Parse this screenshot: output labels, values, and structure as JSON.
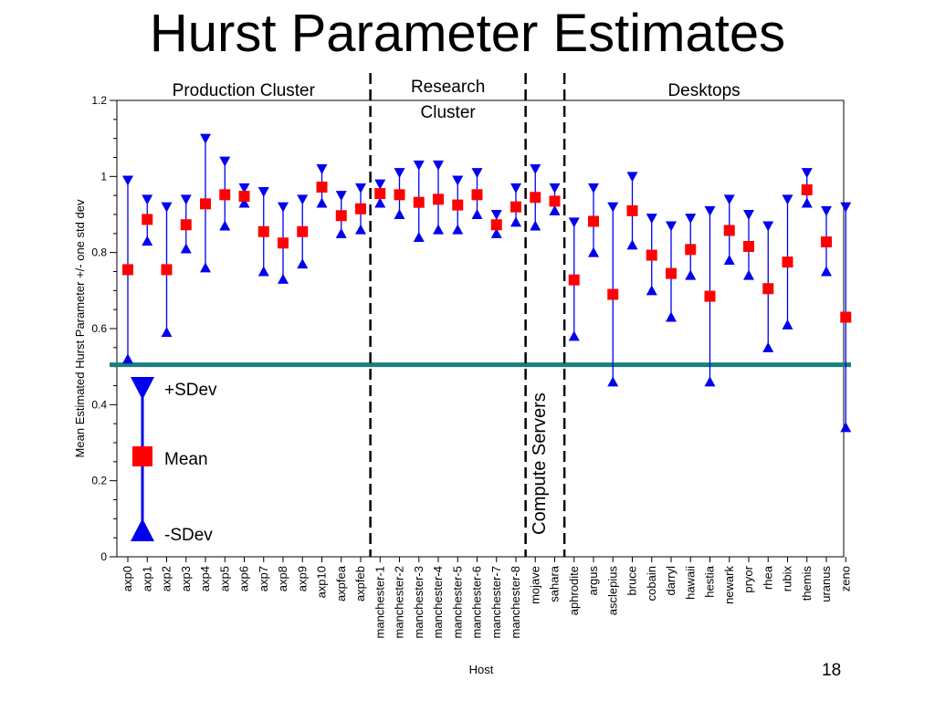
{
  "slide": {
    "title": "Hurst Parameter Estimates",
    "page_number": "18"
  },
  "chart_data": {
    "type": "scatter",
    "title": "Hurst Parameter Estimates",
    "xlabel": "Host",
    "ylabel": "Mean Estimated Hurst Parameter +/- one std dev",
    "ylim": [
      0,
      1.2
    ],
    "yticks": [
      0,
      0.2,
      0.4,
      0.6,
      0.8,
      1,
      1.2
    ],
    "ytick_labels": [
      "0",
      "0.2",
      "0.4",
      "0.6",
      "0.8",
      "1",
      "1.2"
    ],
    "reference_line": 0.505,
    "reference_line_color": "#1a7f7f",
    "mean_color": "#ff0000",
    "sdev_color": "#0000ee",
    "categories": [
      "axp0",
      "axp1",
      "axp2",
      "axp3",
      "axp4",
      "axp5",
      "axp6",
      "axp7",
      "axp8",
      "axp9",
      "axp10",
      "axpfea",
      "axpfeb",
      "manchester-1",
      "manchester-2",
      "manchester-3",
      "manchester-4",
      "manchester-5",
      "manchester-6",
      "manchester-7",
      "manchester-8",
      "mojave",
      "sahara",
      "aphrodite",
      "argus",
      "asclepius",
      "bruce",
      "cobain",
      "darryl",
      "hawaii",
      "hestia",
      "newark",
      "pryor",
      "rhea",
      "rubix",
      "themis",
      "uranus",
      "zeno"
    ],
    "series": [
      {
        "name": "+SDev",
        "values": [
          0.99,
          0.94,
          0.92,
          0.94,
          1.1,
          1.04,
          0.97,
          0.96,
          0.92,
          0.94,
          1.02,
          0.95,
          0.97,
          0.98,
          1.01,
          1.03,
          1.03,
          0.99,
          1.01,
          0.9,
          0.97,
          1.02,
          0.97,
          0.88,
          0.97,
          0.92,
          1.0,
          0.89,
          0.87,
          0.89,
          0.91,
          0.94,
          0.9,
          0.87,
          0.94,
          1.01,
          0.91,
          0.92
        ]
      },
      {
        "name": "Mean",
        "values": [
          0.755,
          0.887,
          0.755,
          0.873,
          0.928,
          0.952,
          0.948,
          0.855,
          0.825,
          0.855,
          0.972,
          0.897,
          0.915,
          0.955,
          0.952,
          0.932,
          0.94,
          0.925,
          0.952,
          0.873,
          0.92,
          0.945,
          0.935,
          0.728,
          0.882,
          0.69,
          0.91,
          0.793,
          0.745,
          0.808,
          0.685,
          0.858,
          0.816,
          0.705,
          0.775,
          0.965,
          0.828,
          0.63
        ]
      },
      {
        "name": "-SDev",
        "values": [
          0.52,
          0.83,
          0.59,
          0.81,
          0.76,
          0.87,
          0.93,
          0.75,
          0.73,
          0.77,
          0.93,
          0.85,
          0.86,
          0.93,
          0.9,
          0.84,
          0.86,
          0.86,
          0.9,
          0.85,
          0.88,
          0.87,
          0.91,
          0.58,
          0.8,
          0.46,
          0.82,
          0.7,
          0.63,
          0.74,
          0.46,
          0.78,
          0.74,
          0.55,
          0.61,
          0.93,
          0.75,
          0.34
        ]
      }
    ],
    "groups": [
      {
        "label_lines": [
          "Production Cluster"
        ],
        "start": 0,
        "end": 12
      },
      {
        "label_lines": [
          "Research",
          "Cluster"
        ],
        "start": 13,
        "end": 20
      },
      {
        "label_lines": [
          "Compute Servers"
        ],
        "start": 21,
        "end": 22
      },
      {
        "label_lines": [
          "Desktops"
        ],
        "start": 23,
        "end": 37
      }
    ],
    "legend": {
      "placement": "lower-left",
      "items": [
        "+SDev",
        "Mean",
        "-SDev"
      ]
    }
  }
}
